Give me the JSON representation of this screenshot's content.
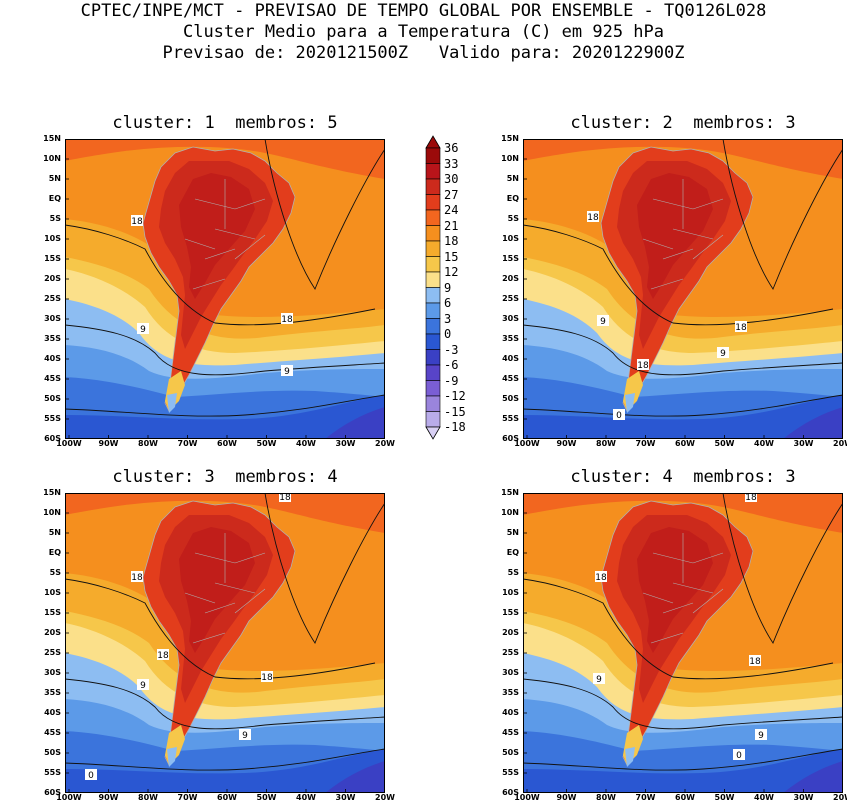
{
  "header": {
    "line1": "CPTEC/INPE/MCT - PREVISAO DE TEMPO GLOBAL POR ENSEMBLE - TQ0126L028",
    "line2": "Cluster Medio para a Temperatura (C) em 925 hPa",
    "line3": "Previsao de: 2020121500Z   Valido para: 2020122900Z"
  },
  "panels": [
    {
      "title": "cluster: 1  membros: 5",
      "contour_labels": [
        "18",
        "18",
        "9",
        "9"
      ]
    },
    {
      "title": "cluster: 2  membros: 3",
      "contour_labels": [
        "18",
        "18",
        "9",
        "18",
        "9",
        "0"
      ]
    },
    {
      "title": "cluster: 3  membros: 4",
      "contour_labels": [
        "18",
        "18",
        "18",
        "18",
        "9",
        "9",
        "0"
      ]
    },
    {
      "title": "cluster: 4  membros: 3",
      "contour_labels": [
        "18",
        "18",
        "18",
        "9",
        "9",
        "0"
      ]
    }
  ],
  "lat_labels": [
    "15N",
    "10N",
    "5N",
    "EQ",
    "5S",
    "10S",
    "15S",
    "20S",
    "25S",
    "30S",
    "35S",
    "40S",
    "45S",
    "50S",
    "55S",
    "60S"
  ],
  "lon_labels": [
    "100W",
    "90W",
    "80W",
    "70W",
    "60W",
    "50W",
    "40W",
    "30W",
    "20W"
  ],
  "colorbar": {
    "levels": [
      "36",
      "33",
      "30",
      "27",
      "24",
      "21",
      "18",
      "15",
      "12",
      "9",
      "6",
      "3",
      "0",
      "-3",
      "-6",
      "-9",
      "-12",
      "-15",
      "-18"
    ],
    "colors": [
      "#9b0a0a",
      "#b8141a",
      "#cc2a1c",
      "#e23d1c",
      "#f2661f",
      "#f58f1e",
      "#f5ab2c",
      "#f6c74a",
      "#fbe08a",
      "#8dbdf2",
      "#5c9ae8",
      "#3b74dc",
      "#2a57d2",
      "#3a40c4",
      "#5844c8",
      "#7a5ed4",
      "#9a84dc",
      "#b9acea",
      "#d8d0f4"
    ]
  },
  "colors": {
    "land_outline": "#b0b0b0",
    "contour": "#111111"
  }
}
